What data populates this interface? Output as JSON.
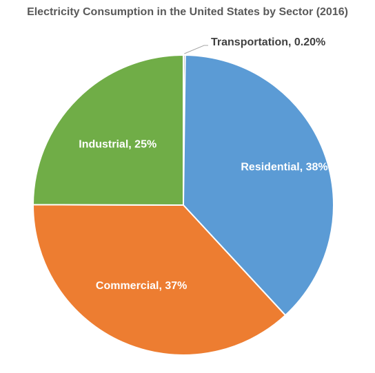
{
  "chart_data": {
    "type": "pie",
    "title": "Electricity Consumption in the United States by Sector (2016)",
    "slices": [
      {
        "name": "Transportation",
        "value": 0.2,
        "label": "Transportation, 0.20%",
        "color": "#a5a5a5",
        "label_color": "#404040"
      },
      {
        "name": "Residential",
        "value": 38,
        "label": "Residential, 38%",
        "color": "#5b9bd5",
        "label_color": "#ffffff"
      },
      {
        "name": "Commercial",
        "value": 37,
        "label": "Commercial, 37%",
        "color": "#ed7d31",
        "label_color": "#ffffff"
      },
      {
        "name": "Industrial",
        "value": 25,
        "label": "Industrial, 25%",
        "color": "#70ad47",
        "label_color": "#ffffff"
      }
    ],
    "start_angle_deg": 0,
    "direction": "clockwise",
    "legend": "none"
  }
}
